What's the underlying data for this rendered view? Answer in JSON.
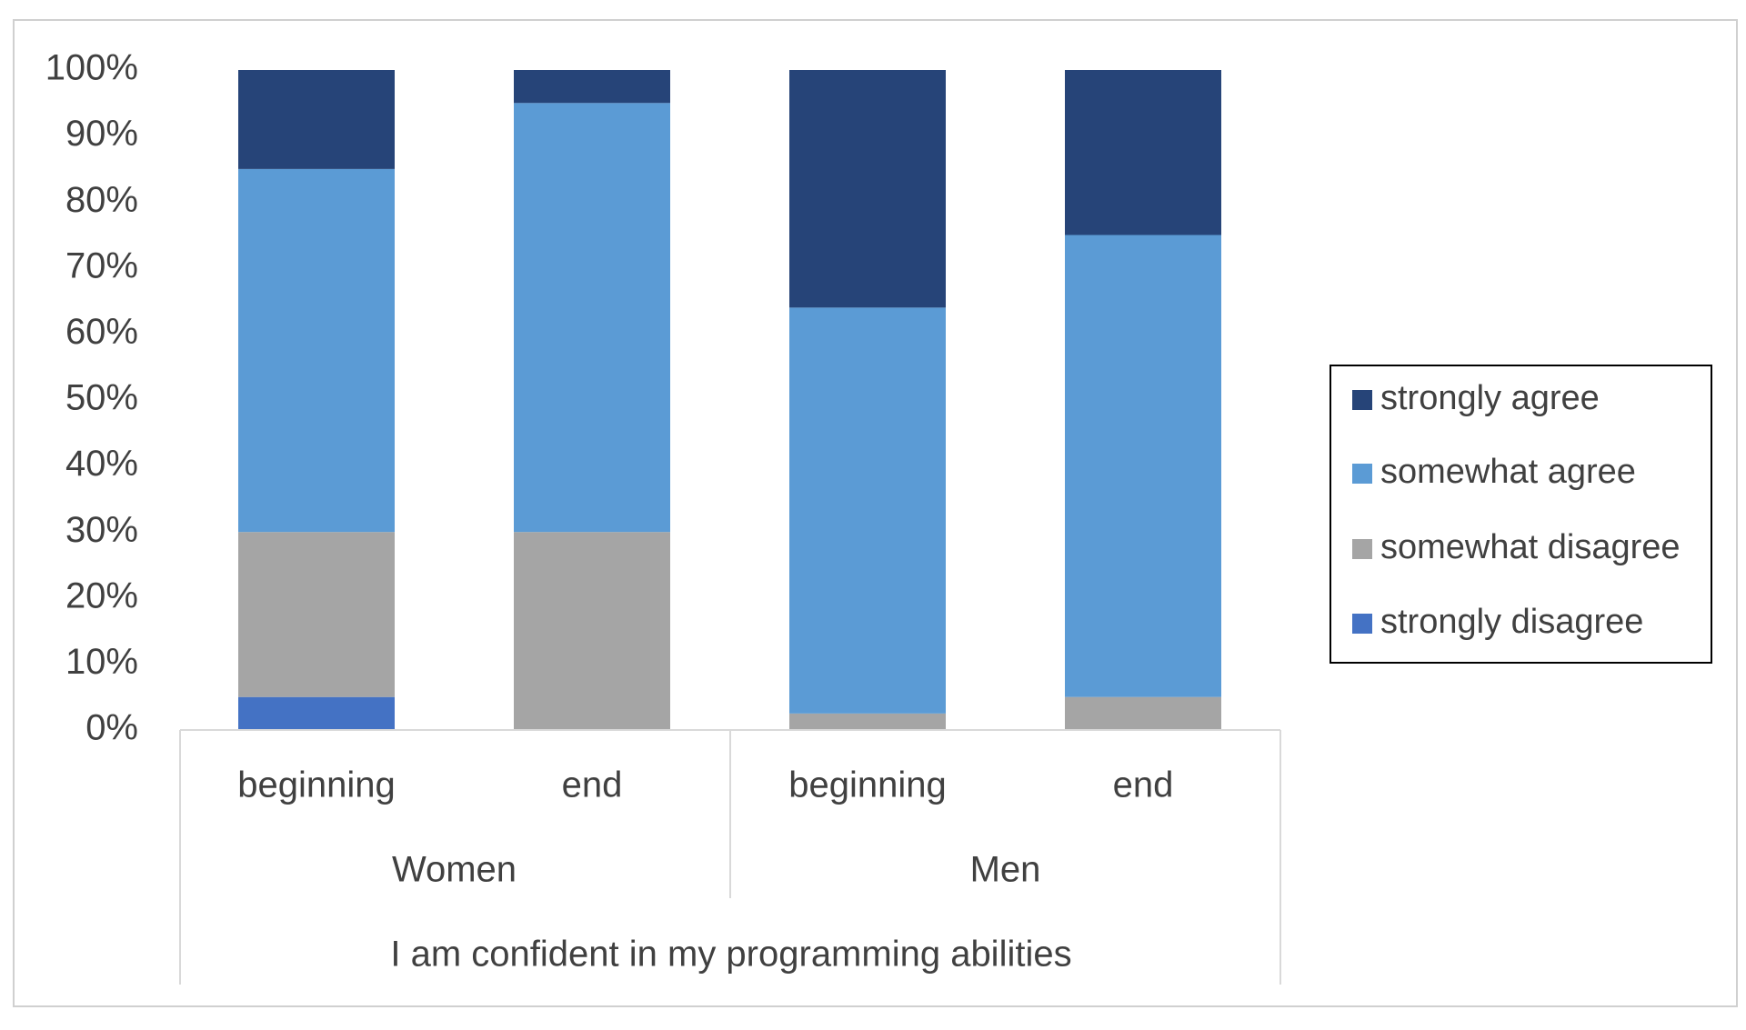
{
  "chart_data": {
    "type": "bar",
    "stacked": "percent",
    "groups": [
      "Women",
      "Men"
    ],
    "categories": [
      "beginning",
      "end",
      "beginning",
      "end"
    ],
    "category_groups": [
      "Women",
      "Women",
      "Men",
      "Men"
    ],
    "axis_title": "I am confident in my programming abilities",
    "ylim": [
      0,
      100
    ],
    "ytick_labels": [
      "0%",
      "10%",
      "20%",
      "30%",
      "40%",
      "50%",
      "60%",
      "70%",
      "80%",
      "90%",
      "100%"
    ],
    "series": [
      {
        "name": "strongly disagree",
        "color": "#4472C4",
        "values": [
          5,
          0,
          0,
          0
        ]
      },
      {
        "name": "somewhat disagree",
        "color": "#A5A5A5",
        "values": [
          25,
          30,
          2.5,
          5
        ]
      },
      {
        "name": "somewhat agree",
        "color": "#5B9BD5",
        "values": [
          55,
          65,
          61.5,
          70
        ]
      },
      {
        "name": "strongly agree",
        "color": "#264478",
        "values": [
          15,
          5,
          36,
          25
        ]
      }
    ],
    "legend": {
      "position": "right",
      "order": [
        "strongly agree",
        "somewhat agree",
        "somewhat disagree",
        "strongly disagree"
      ]
    },
    "grid": false
  }
}
